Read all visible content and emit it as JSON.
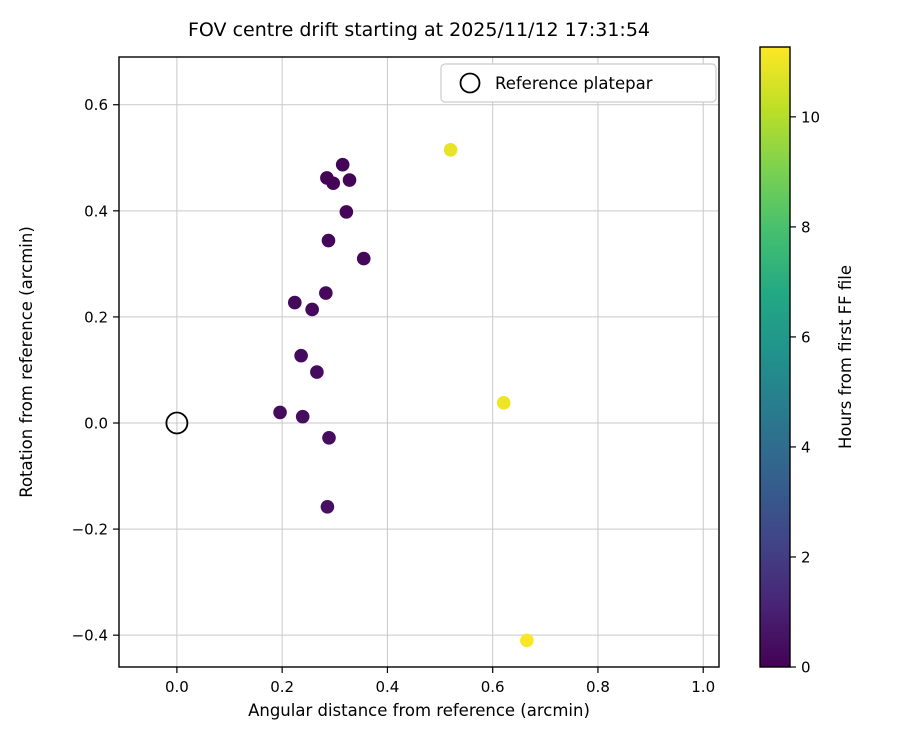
{
  "figure": {
    "title": "FOV centre drift starting at 2025/11/12 17:31:54"
  },
  "chart_data": {
    "type": "scatter",
    "title": "FOV centre drift starting at 2025/11/12 17:31:54",
    "xlabel": "Angular distance from reference (arcmin)",
    "ylabel": "Rotation from reference (arcmin)",
    "xlim": [
      -0.11,
      1.03
    ],
    "ylim": [
      -0.46,
      0.69
    ],
    "xticks": [
      0.0,
      0.2,
      0.4,
      0.6,
      0.8,
      1.0
    ],
    "yticks": [
      -0.4,
      -0.2,
      0.0,
      0.2,
      0.4,
      0.6
    ],
    "grid": true,
    "legend": {
      "label": "Reference platepar",
      "position": "upper right",
      "marker": "open-circle"
    },
    "reference_point": {
      "x": 0.0,
      "y": 0.0
    },
    "points": [
      {
        "x": 0.285,
        "y": 0.462,
        "hours": 0.05
      },
      {
        "x": 0.297,
        "y": 0.452,
        "hours": 0.08
      },
      {
        "x": 0.315,
        "y": 0.487,
        "hours": 0.1
      },
      {
        "x": 0.328,
        "y": 0.458,
        "hours": 0.12
      },
      {
        "x": 0.322,
        "y": 0.398,
        "hours": 0.15
      },
      {
        "x": 0.288,
        "y": 0.344,
        "hours": 0.18
      },
      {
        "x": 0.355,
        "y": 0.31,
        "hours": 0.2
      },
      {
        "x": 0.283,
        "y": 0.245,
        "hours": 0.22
      },
      {
        "x": 0.224,
        "y": 0.227,
        "hours": 0.25
      },
      {
        "x": 0.257,
        "y": 0.214,
        "hours": 0.27
      },
      {
        "x": 0.236,
        "y": 0.127,
        "hours": 0.3
      },
      {
        "x": 0.266,
        "y": 0.096,
        "hours": 0.32
      },
      {
        "x": 0.196,
        "y": 0.02,
        "hours": 0.35
      },
      {
        "x": 0.239,
        "y": 0.012,
        "hours": 0.37
      },
      {
        "x": 0.289,
        "y": -0.028,
        "hours": 0.4
      },
      {
        "x": 0.286,
        "y": -0.158,
        "hours": 0.45
      },
      {
        "x": 0.52,
        "y": 0.515,
        "hours": 10.9
      },
      {
        "x": 0.621,
        "y": 0.038,
        "hours": 11.0
      },
      {
        "x": 0.665,
        "y": -0.41,
        "hours": 11.2
      }
    ],
    "colorbar": {
      "label": "Hours from first FF file",
      "min": 0,
      "max": 11.27,
      "ticks": [
        0,
        2,
        4,
        6,
        8,
        10
      ],
      "colormap": "viridis"
    },
    "colors": {
      "grid": "#c9c9c9",
      "frame": "#000000",
      "legend_border": "#cccccc",
      "viridis_stops": [
        "#440154",
        "#482475",
        "#414487",
        "#355f8d",
        "#2a788e",
        "#21918c",
        "#22a884",
        "#44bf70",
        "#7ad151",
        "#bddf26",
        "#fde725"
      ]
    }
  }
}
